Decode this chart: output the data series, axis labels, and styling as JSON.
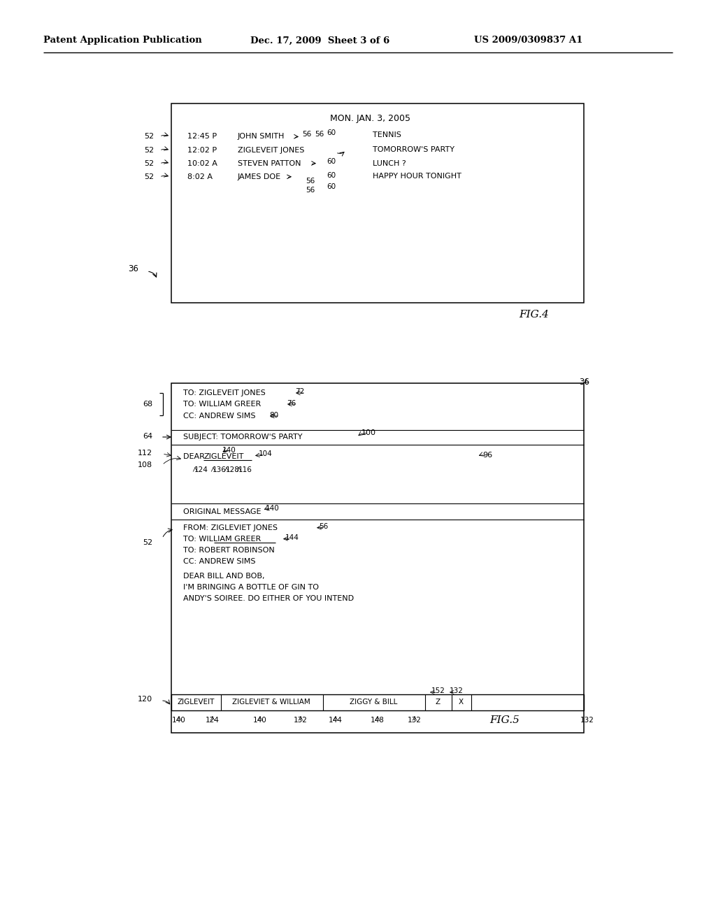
{
  "bg_color": "#ffffff",
  "header_left": "Patent Application Publication",
  "header_mid": "Dec. 17, 2009  Sheet 3 of 6",
  "header_right": "US 2009/0309837 A1",
  "fig4_title": "MON. JAN. 3, 2005",
  "fig4_rows": [
    {
      "time": "12:45 P",
      "name": "JOHN SMITH",
      "ref56a": "56",
      "ref56b": "56",
      "ref60": "60",
      "subject": "TENNIS"
    },
    {
      "time": "12:02 P",
      "name": "ZIGLEVEIT JONES",
      "ref56a": "",
      "ref56b": "",
      "ref60": "",
      "subject": "TOMORROW'S PARTY"
    },
    {
      "time": "10:02 A",
      "name": "STEVEN PATTON",
      "ref56a": "",
      "ref56b": "",
      "ref60": "60",
      "subject": "LUNCH ?"
    },
    {
      "time": "8:02 A",
      "name": "JAMES DOE",
      "ref56a": "56",
      "ref56b": "",
      "ref60": "60",
      "subject": "HAPPY HOUR TONIGHT"
    }
  ],
  "fig4_label": "FIG.4",
  "fig5_to1": "TO: ZIGLEVEIT JONES",
  "fig5_to2": "TO: WILLIAM GREER",
  "fig5_cc": "CC: ANDREW SIMS",
  "fig5_subject": "SUBJECT: TOMORROW'S PARTY",
  "fig5_dear_prefix": "DEAR  ",
  "fig5_dear_name": "ZIGLEVEIT",
  "fig5_orig": "ORIGINAL MESSAGE",
  "fig5_from": "FROM: ZIGLEVIET JONES",
  "fig5_to_orig1": "TO: WILLIAM GREER",
  "fig5_to_orig2": "TO: ROBERT ROBINSON",
  "fig5_cc_orig": "CC: ANDREW SIMS",
  "fig5_body1": "DEAR BILL AND BOB,",
  "fig5_body2": "I'M BRINGING A BOTTLE OF GIN TO",
  "fig5_body3": "ANDY'S SOIREE. DO EITHER OF YOU INTEND",
  "fig5_bar": [
    "ZIGLEVEIT",
    "ZIGLEVIET & WILLIAM",
    "ZIGGY & BILL",
    "Z",
    "X"
  ],
  "fig5_label": "FIG.5"
}
